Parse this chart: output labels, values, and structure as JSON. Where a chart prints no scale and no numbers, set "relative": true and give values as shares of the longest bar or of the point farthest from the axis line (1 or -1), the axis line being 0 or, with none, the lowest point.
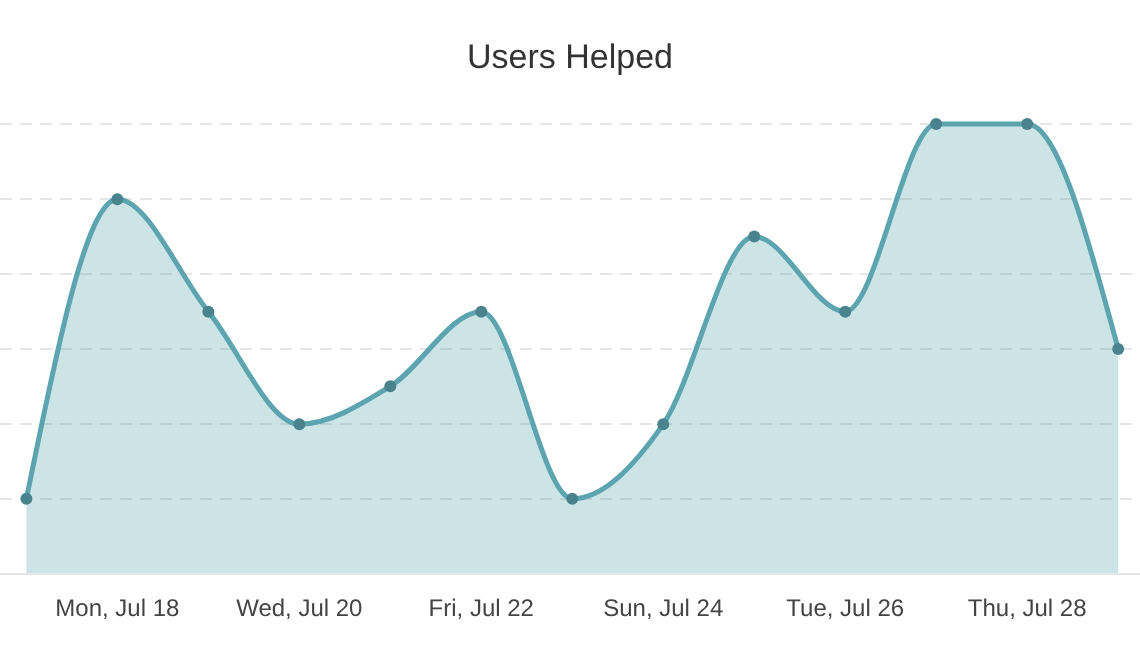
{
  "chart_data": {
    "type": "area",
    "title": "Users Helped",
    "relative": true,
    "categories": [
      null,
      "Mon, Jul 18",
      null,
      "Wed, Jul 20",
      null,
      "Fri, Jul 22",
      null,
      "Sun, Jul 24",
      null,
      "Tue, Jul 26",
      null,
      "Thu, Jul 28",
      null
    ],
    "series": [
      {
        "color": "#5ba4b0",
        "values": [
          0.167,
          0.833,
          0.583,
          0.333,
          0.417,
          0.583,
          0.167,
          0.333,
          0.75,
          0.583,
          1,
          1,
          0.5
        ]
      }
    ],
    "grid": "y",
    "marker": "circle",
    "line_style": "solid"
  }
}
